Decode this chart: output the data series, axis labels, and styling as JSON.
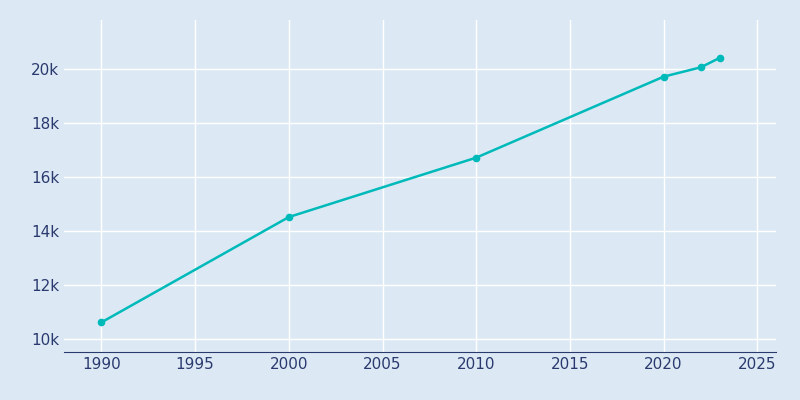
{
  "years": [
    1990,
    2000,
    2010,
    2020,
    2022,
    2023
  ],
  "population": [
    10600,
    14500,
    16700,
    19700,
    20050,
    20400
  ],
  "line_color": "#00BABA",
  "marker_color": "#00BABA",
  "background_color": "#dce9f5",
  "grid_color": "#ffffff",
  "text_color": "#2b3a6e",
  "xlim": [
    1988,
    2026
  ],
  "ylim": [
    9500,
    21800
  ],
  "xticks": [
    1990,
    1995,
    2000,
    2005,
    2010,
    2015,
    2020,
    2025
  ],
  "yticks": [
    10000,
    12000,
    14000,
    16000,
    18000,
    20000
  ],
  "ytick_labels": [
    "10k",
    "12k",
    "14k",
    "16k",
    "18k",
    "20k"
  ],
  "linewidth": 1.8,
  "markersize": 4.5
}
